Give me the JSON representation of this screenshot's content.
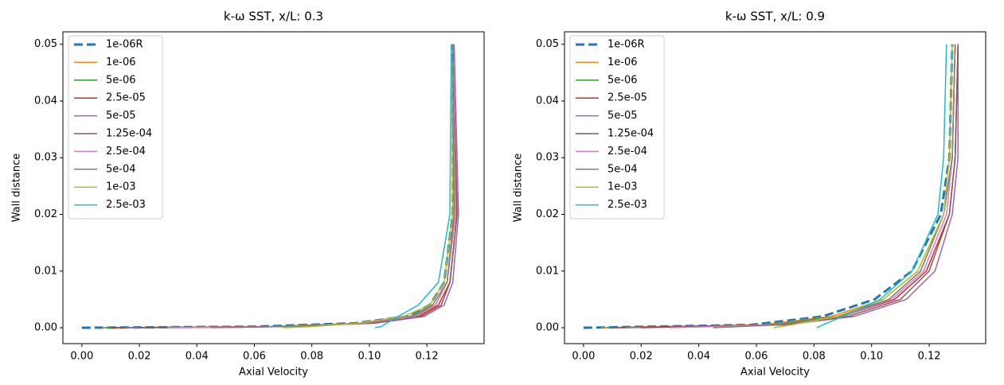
{
  "chart_data": [
    {
      "type": "line",
      "title": "k-ω SST, x/L: 0.3",
      "x_label": "Axial Velocity",
      "y_label": "Wall distance",
      "xlim": [
        -0.0066,
        0.1399
      ],
      "ylim": [
        -0.0028,
        0.0522
      ],
      "xticks": [
        {
          "value": 0,
          "label": "0.00"
        },
        {
          "value": 0.02,
          "label": "0.02"
        },
        {
          "value": 0.04,
          "label": "0.04"
        },
        {
          "value": 0.06,
          "label": "0.06"
        },
        {
          "value": 0.08,
          "label": "0.08"
        },
        {
          "value": 0.1,
          "label": "0.10"
        },
        {
          "value": 0.12,
          "label": "0.12"
        }
      ],
      "yticks": [
        {
          "value": 0,
          "label": "0.00"
        },
        {
          "value": 0.01,
          "label": "0.01"
        },
        {
          "value": 0.02,
          "label": "0.02"
        },
        {
          "value": 0.03,
          "label": "0.03"
        },
        {
          "value": 0.04,
          "label": "0.04"
        },
        {
          "value": 0.05,
          "label": "0.05"
        }
      ],
      "legend": "upper left",
      "series": [
        {
          "name": "1e-06R",
          "color": "#1f77b4",
          "linestyle": "dashed",
          "x": [
            0,
            0.06,
            0.095,
            0.113,
            0.121,
            0.126,
            0.129,
            0.129
          ],
          "values": [
            0,
            0.0002,
            0.0008,
            0.002,
            0.004,
            0.008,
            0.02,
            0.05
          ]
        },
        {
          "name": "1e-06",
          "color": "#ff7f0e",
          "linestyle": "solid",
          "x": [
            0.007,
            0.065,
            0.097,
            0.114,
            0.122,
            0.127,
            0.1295,
            0.129
          ],
          "values": [
            0,
            0.0002,
            0.0008,
            0.002,
            0.004,
            0.008,
            0.02,
            0.05
          ]
        },
        {
          "name": "5e-06",
          "color": "#2ca02c",
          "linestyle": "solid",
          "x": [
            0.008,
            0.066,
            0.098,
            0.115,
            0.123,
            0.127,
            0.13,
            0.129
          ],
          "values": [
            0,
            0.0002,
            0.0008,
            0.002,
            0.004,
            0.008,
            0.02,
            0.05
          ]
        },
        {
          "name": "2.5e-05",
          "color": "#d62728",
          "linestyle": "solid",
          "x": [
            0.01,
            0.07,
            0.1,
            0.117,
            0.124,
            0.128,
            0.1305,
            0.129
          ],
          "values": [
            0,
            0.0002,
            0.0008,
            0.002,
            0.004,
            0.008,
            0.02,
            0.05
          ]
        },
        {
          "name": "5e-05",
          "color": "#9467bd",
          "linestyle": "solid",
          "x": [
            0.015,
            0.072,
            0.102,
            0.119,
            0.126,
            0.129,
            0.131,
            0.1295
          ],
          "values": [
            0,
            0.0002,
            0.0008,
            0.002,
            0.004,
            0.008,
            0.02,
            0.05
          ]
        },
        {
          "name": "1.25e-04",
          "color": "#8c564b",
          "linestyle": "solid",
          "x": [
            0.02,
            0.07,
            0.1,
            0.118,
            0.125,
            0.128,
            0.1305,
            0.129
          ],
          "values": [
            0,
            0.0002,
            0.0008,
            0.002,
            0.004,
            0.008,
            0.02,
            0.05
          ]
        },
        {
          "name": "2.5e-04",
          "color": "#e377c2",
          "linestyle": "solid",
          "x": [
            0.03,
            0.068,
            0.098,
            0.116,
            0.123,
            0.127,
            0.13,
            0.129
          ],
          "values": [
            0,
            0.0002,
            0.0008,
            0.002,
            0.004,
            0.008,
            0.02,
            0.05
          ]
        },
        {
          "name": "5e-04",
          "color": "#7f7f7f",
          "linestyle": "solid",
          "x": [
            0.045,
            0.07,
            0.097,
            0.114,
            0.122,
            0.127,
            0.1295,
            0.129
          ],
          "values": [
            0,
            0.0002,
            0.0008,
            0.002,
            0.004,
            0.008,
            0.02,
            0.05
          ]
        },
        {
          "name": "1e-03",
          "color": "#bcbd22",
          "linestyle": "solid",
          "x": [
            0.07,
            0.08,
            0.096,
            0.112,
            0.121,
            0.126,
            0.129,
            0.1285
          ],
          "values": [
            0,
            0.0002,
            0.0008,
            0.002,
            0.004,
            0.008,
            0.02,
            0.05
          ]
        },
        {
          "name": "2.5e-03",
          "color": "#17becf",
          "linestyle": "solid",
          "x": [
            0.102,
            0.104,
            0.106,
            0.11,
            0.117,
            0.124,
            0.128,
            0.1285
          ],
          "values": [
            0,
            0.0002,
            0.0008,
            0.002,
            0.004,
            0.008,
            0.02,
            0.05
          ]
        }
      ]
    },
    {
      "type": "line",
      "title": "k-ω SST, x/L: 0.9",
      "x_label": "Axial Velocity",
      "y_label": "Wall distance",
      "xlim": [
        -0.0066,
        0.1396
      ],
      "ylim": [
        -0.0028,
        0.0522
      ],
      "xticks": [
        {
          "value": 0,
          "label": "0.00"
        },
        {
          "value": 0.02,
          "label": "0.02"
        },
        {
          "value": 0.04,
          "label": "0.04"
        },
        {
          "value": 0.06,
          "label": "0.06"
        },
        {
          "value": 0.08,
          "label": "0.08"
        },
        {
          "value": 0.1,
          "label": "0.10"
        },
        {
          "value": 0.12,
          "label": "0.12"
        }
      ],
      "yticks": [
        {
          "value": 0,
          "label": "0.00"
        },
        {
          "value": 0.01,
          "label": "0.01"
        },
        {
          "value": 0.02,
          "label": "0.02"
        },
        {
          "value": 0.03,
          "label": "0.03"
        },
        {
          "value": 0.04,
          "label": "0.04"
        },
        {
          "value": 0.05,
          "label": "0.05"
        }
      ],
      "legend": "upper left",
      "series": [
        {
          "name": "1e-06R",
          "color": "#1f77b4",
          "linestyle": "dashed",
          "x": [
            0,
            0.058,
            0.083,
            0.101,
            0.114,
            0.124,
            0.127,
            0.128
          ],
          "values": [
            0,
            0.0005,
            0.002,
            0.005,
            0.01,
            0.02,
            0.03,
            0.05
          ]
        },
        {
          "name": "1e-06",
          "color": "#ff7f0e",
          "linestyle": "solid",
          "x": [
            0.006,
            0.062,
            0.086,
            0.104,
            0.116,
            0.125,
            0.128,
            0.129
          ],
          "values": [
            0,
            0.0005,
            0.002,
            0.005,
            0.01,
            0.02,
            0.03,
            0.05
          ]
        },
        {
          "name": "5e-06",
          "color": "#2ca02c",
          "linestyle": "solid",
          "x": [
            0.008,
            0.064,
            0.088,
            0.106,
            0.117,
            0.125,
            0.128,
            0.129
          ],
          "values": [
            0,
            0.0005,
            0.002,
            0.005,
            0.01,
            0.02,
            0.03,
            0.05
          ]
        },
        {
          "name": "2.5e-05",
          "color": "#d62728",
          "linestyle": "solid",
          "x": [
            0.01,
            0.066,
            0.09,
            0.108,
            0.119,
            0.127,
            0.129,
            0.13
          ],
          "values": [
            0,
            0.0005,
            0.002,
            0.005,
            0.01,
            0.02,
            0.03,
            0.05
          ]
        },
        {
          "name": "5e-05",
          "color": "#9467bd",
          "linestyle": "solid",
          "x": [
            0.015,
            0.07,
            0.094,
            0.112,
            0.122,
            0.128,
            0.13,
            0.13
          ],
          "values": [
            0,
            0.0005,
            0.002,
            0.005,
            0.01,
            0.02,
            0.03,
            0.05
          ]
        },
        {
          "name": "1.25e-04",
          "color": "#8c564b",
          "linestyle": "solid",
          "x": [
            0.02,
            0.068,
            0.092,
            0.11,
            0.12,
            0.127,
            0.129,
            0.13
          ],
          "values": [
            0,
            0.0005,
            0.002,
            0.005,
            0.01,
            0.02,
            0.03,
            0.05
          ]
        },
        {
          "name": "2.5e-04",
          "color": "#e377c2",
          "linestyle": "solid",
          "x": [
            0.03,
            0.066,
            0.09,
            0.107,
            0.118,
            0.126,
            0.128,
            0.129
          ],
          "values": [
            0,
            0.0005,
            0.002,
            0.005,
            0.01,
            0.02,
            0.03,
            0.05
          ]
        },
        {
          "name": "5e-04",
          "color": "#7f7f7f",
          "linestyle": "solid",
          "x": [
            0.045,
            0.067,
            0.089,
            0.106,
            0.117,
            0.125,
            0.128,
            0.129
          ],
          "values": [
            0,
            0.0005,
            0.002,
            0.005,
            0.01,
            0.02,
            0.03,
            0.05
          ]
        },
        {
          "name": "1e-03",
          "color": "#bcbd22",
          "linestyle": "solid",
          "x": [
            0.066,
            0.072,
            0.088,
            0.104,
            0.116,
            0.125,
            0.127,
            0.128
          ],
          "values": [
            0,
            0.0005,
            0.002,
            0.005,
            0.01,
            0.02,
            0.03,
            0.05
          ]
        },
        {
          "name": "2.5e-03",
          "color": "#17becf",
          "linestyle": "solid",
          "x": [
            0.081,
            0.083,
            0.09,
            0.103,
            0.114,
            0.123,
            0.125,
            0.126
          ],
          "values": [
            0,
            0.0005,
            0.002,
            0.005,
            0.01,
            0.02,
            0.03,
            0.05
          ]
        }
      ]
    }
  ]
}
